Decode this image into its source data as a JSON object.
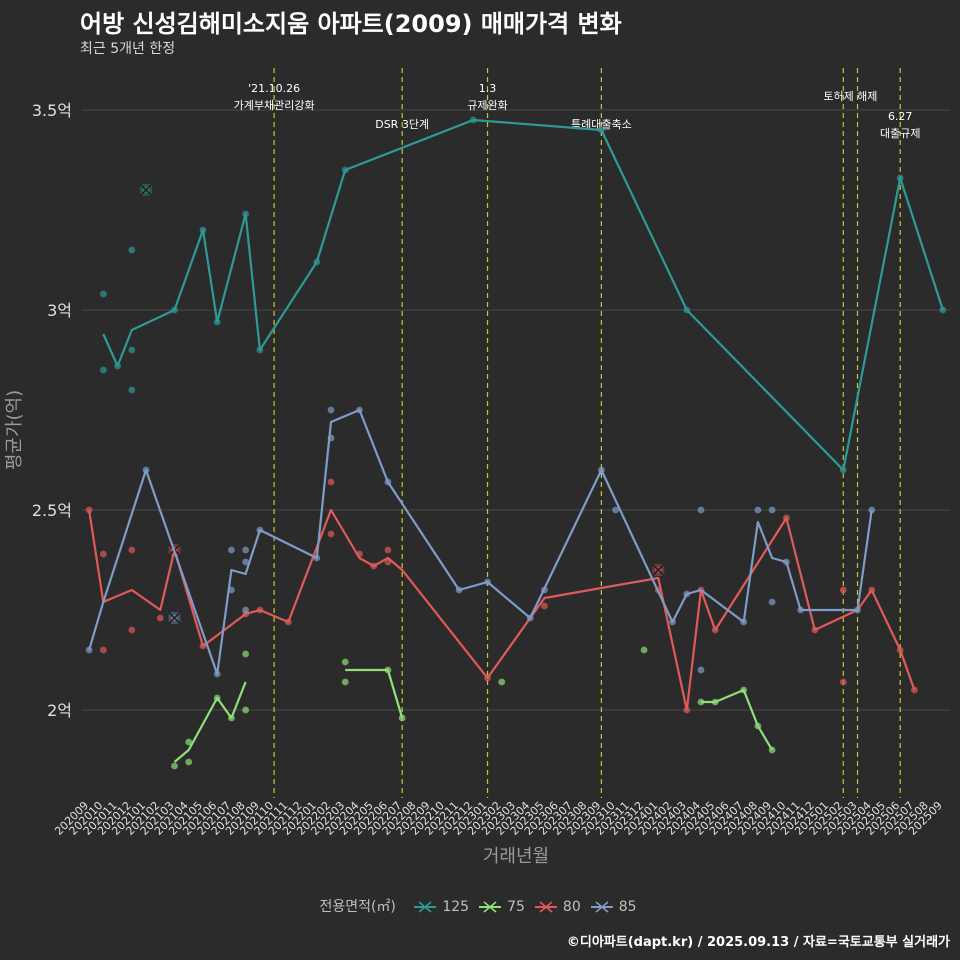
{
  "title": "어방 신성김해미소지움 아파트(2009) 매매가격 변화",
  "subtitle": "최근 5개년 한정",
  "caption": "©디아파트(dapt.kr) / 2025.09.13 / 자료=국토교통부 실거래가",
  "legend": {
    "title": "전용면적(㎡)"
  },
  "chart_data": {
    "type": "line",
    "xlabel": "거래년월",
    "ylabel": "평균가(억)",
    "categories": [
      "202009",
      "202010",
      "202011",
      "202012",
      "202101",
      "202102",
      "202103",
      "202104",
      "202105",
      "202106",
      "202107",
      "202108",
      "202109",
      "202110",
      "202111",
      "202112",
      "202201",
      "202202",
      "202203",
      "202204",
      "202205",
      "202206",
      "202207",
      "202208",
      "202209",
      "202210",
      "202211",
      "202212",
      "202301",
      "202302",
      "202303",
      "202304",
      "202305",
      "202306",
      "202307",
      "202308",
      "202309",
      "202310",
      "202311",
      "202312",
      "202401",
      "202402",
      "202403",
      "202404",
      "202405",
      "202406",
      "202407",
      "202408",
      "202409",
      "202410",
      "202411",
      "202412",
      "202501",
      "202502",
      "202503",
      "202504",
      "202505",
      "202506",
      "202507",
      "202508",
      "202509"
    ],
    "ylim": [
      1.78,
      3.62
    ],
    "yticks": [
      {
        "value": 2.0,
        "label": "2억"
      },
      {
        "value": 2.5,
        "label": "2.5억"
      },
      {
        "value": 3.0,
        "label": "3억"
      },
      {
        "value": 3.5,
        "label": "3.5억"
      }
    ],
    "grid": true,
    "legend_position": "bottom",
    "events": [
      {
        "month": "202110",
        "label": "'21.10.26 가계부채관리강화",
        "lines": [
          "'21.10.26",
          "가계부채관리강화"
        ]
      },
      {
        "month": "202207",
        "label": "DSR 3단계",
        "lines": [
          "DSR 3단계"
        ]
      },
      {
        "month": "202301",
        "label": "1.3 규제완화",
        "lines": [
          "1.3",
          "규제완화"
        ]
      },
      {
        "month": "202309",
        "label": "특례대출축소",
        "lines": [
          "특례대출축소"
        ]
      },
      {
        "month": "202502",
        "label": "토허제 해제",
        "lines": [
          "토허제 해제"
        ]
      },
      {
        "month": "202503",
        "label": "토허제 해제",
        "lines": []
      },
      {
        "month": "202506",
        "label": "6.27 대출규제",
        "lines": [
          "6.27",
          "대출규제"
        ]
      }
    ],
    "series": [
      {
        "name": "125",
        "color": "#2e9a96",
        "line": [
          [
            "202010",
            2.94
          ],
          [
            "202011",
            2.86
          ],
          [
            "202012",
            2.95
          ],
          [
            "202103",
            3.0
          ],
          [
            "202105",
            3.2
          ],
          [
            "202106",
            2.97
          ],
          [
            "202108",
            3.24
          ],
          [
            "202109",
            2.9
          ],
          [
            "202201",
            3.12
          ],
          [
            "202203",
            3.35
          ],
          [
            "202212",
            3.475
          ],
          [
            "202309",
            3.45
          ],
          [
            "202403",
            3.0
          ],
          [
            "202502",
            2.6
          ],
          [
            "202506",
            3.33
          ],
          [
            "202509",
            3.0
          ]
        ],
        "points": [
          [
            "202010",
            2.85
          ],
          [
            "202010",
            3.04
          ],
          [
            "202011",
            2.86
          ],
          [
            "202012",
            3.15
          ],
          [
            "202012",
            2.9
          ],
          [
            "202012",
            2.8
          ],
          [
            "202101",
            3.3
          ],
          [
            "202103",
            3.0
          ],
          [
            "202105",
            3.2
          ],
          [
            "202106",
            2.97
          ],
          [
            "202108",
            3.24
          ],
          [
            "202109",
            2.9
          ],
          [
            "202201",
            3.12
          ],
          [
            "202203",
            3.35
          ],
          [
            "202212",
            3.475
          ],
          [
            "202309",
            3.45
          ],
          [
            "202403",
            3.0
          ],
          [
            "202502",
            2.6
          ],
          [
            "202506",
            3.33
          ],
          [
            "202509",
            3.0
          ]
        ],
        "marks": [
          [
            "202101",
            3.3
          ]
        ]
      },
      {
        "name": "75",
        "color": "#8ee07a",
        "segments": [
          [
            [
              "202103",
              1.87
            ],
            [
              "202104",
              1.9
            ],
            [
              "202106",
              2.03
            ],
            [
              "202107",
              1.98
            ],
            [
              "202108",
              2.07
            ]
          ],
          [
            [
              "202203",
              2.1
            ],
            [
              "202206",
              2.1
            ],
            [
              "202207",
              1.98
            ]
          ],
          [
            [
              "202404",
              2.02
            ],
            [
              "202405",
              2.02
            ],
            [
              "202407",
              2.05
            ],
            [
              "202408",
              1.96
            ],
            [
              "202409",
              1.9
            ]
          ]
        ],
        "points": [
          [
            "202103",
            1.86
          ],
          [
            "202104",
            1.87
          ],
          [
            "202104",
            1.92
          ],
          [
            "202106",
            2.03
          ],
          [
            "202107",
            1.98
          ],
          [
            "202108",
            2.0
          ],
          [
            "202108",
            2.14
          ],
          [
            "202203",
            2.12
          ],
          [
            "202203",
            2.07
          ],
          [
            "202206",
            2.1
          ],
          [
            "202207",
            1.98
          ],
          [
            "202302",
            2.07
          ],
          [
            "202312",
            2.15
          ],
          [
            "202404",
            2.02
          ],
          [
            "202405",
            2.02
          ],
          [
            "202407",
            2.05
          ],
          [
            "202408",
            1.96
          ],
          [
            "202409",
            1.9
          ]
        ],
        "marks": []
      },
      {
        "name": "80",
        "color": "#e05a5a",
        "line": [
          [
            "202009",
            2.5
          ],
          [
            "202010",
            2.27
          ],
          [
            "202012",
            2.3
          ],
          [
            "202102",
            2.25
          ],
          [
            "202103",
            2.4
          ],
          [
            "202105",
            2.16
          ],
          [
            "202108",
            2.24
          ],
          [
            "202109",
            2.25
          ],
          [
            "202111",
            2.22
          ],
          [
            "202202",
            2.5
          ],
          [
            "202204",
            2.38
          ],
          [
            "202205",
            2.36
          ],
          [
            "202206",
            2.38
          ],
          [
            "202207",
            2.35
          ],
          [
            "202301",
            2.08
          ],
          [
            "202305",
            2.28
          ],
          [
            "202401",
            2.33
          ],
          [
            "202403",
            2.0
          ],
          [
            "202404",
            2.3
          ],
          [
            "202405",
            2.2
          ],
          [
            "202410",
            2.48
          ],
          [
            "202412",
            2.2
          ],
          [
            "202503",
            2.25
          ],
          [
            "202504",
            2.3
          ],
          [
            "202506",
            2.15
          ],
          [
            "202507",
            2.05
          ]
        ],
        "points": [
          [
            "202009",
            2.5
          ],
          [
            "202010",
            2.39
          ],
          [
            "202010",
            2.15
          ],
          [
            "202012",
            2.4
          ],
          [
            "202012",
            2.2
          ],
          [
            "202102",
            2.23
          ],
          [
            "202103",
            2.4
          ],
          [
            "202105",
            2.16
          ],
          [
            "202108",
            2.24
          ],
          [
            "202109",
            2.25
          ],
          [
            "202111",
            2.22
          ],
          [
            "202202",
            2.57
          ],
          [
            "202202",
            2.44
          ],
          [
            "202204",
            2.39
          ],
          [
            "202205",
            2.36
          ],
          [
            "202206",
            2.4
          ],
          [
            "202206",
            2.37
          ],
          [
            "202301",
            2.08
          ],
          [
            "202305",
            2.26
          ],
          [
            "202401",
            2.35
          ],
          [
            "202401",
            2.3
          ],
          [
            "202403",
            2.0
          ],
          [
            "202404",
            2.3
          ],
          [
            "202405",
            2.2
          ],
          [
            "202410",
            2.48
          ],
          [
            "202412",
            2.2
          ],
          [
            "202502",
            2.3
          ],
          [
            "202502",
            2.07
          ],
          [
            "202504",
            2.3
          ],
          [
            "202506",
            2.15
          ],
          [
            "202507",
            2.05
          ]
        ],
        "marks": [
          [
            "202103",
            2.4
          ],
          [
            "202401",
            2.35
          ]
        ]
      },
      {
        "name": "85",
        "color": "#7f9cc8",
        "line": [
          [
            "202009",
            2.15
          ],
          [
            "202010",
            2.27
          ],
          [
            "202101",
            2.6
          ],
          [
            "202106",
            2.09
          ],
          [
            "202107",
            2.35
          ],
          [
            "202108",
            2.34
          ],
          [
            "202109",
            2.45
          ],
          [
            "202201",
            2.38
          ],
          [
            "202202",
            2.72
          ],
          [
            "202204",
            2.75
          ],
          [
            "202206",
            2.57
          ],
          [
            "202211",
            2.3
          ],
          [
            "202301",
            2.32
          ],
          [
            "202304",
            2.23
          ],
          [
            "202309",
            2.6
          ],
          [
            "202402",
            2.22
          ],
          [
            "202403",
            2.29
          ],
          [
            "202404",
            2.3
          ],
          [
            "202407",
            2.22
          ],
          [
            "202408",
            2.47
          ],
          [
            "202409",
            2.38
          ],
          [
            "202410",
            2.37
          ],
          [
            "202411",
            2.25
          ],
          [
            "202503",
            2.25
          ],
          [
            "202504",
            2.5
          ]
        ],
        "points": [
          [
            "202009",
            2.15
          ],
          [
            "202101",
            2.6
          ],
          [
            "202103",
            2.23
          ],
          [
            "202106",
            2.09
          ],
          [
            "202107",
            2.4
          ],
          [
            "202107",
            2.3
          ],
          [
            "202108",
            2.4
          ],
          [
            "202108",
            2.37
          ],
          [
            "202108",
            2.25
          ],
          [
            "202109",
            2.45
          ],
          [
            "202201",
            2.38
          ],
          [
            "202202",
            2.75
          ],
          [
            "202202",
            2.68
          ],
          [
            "202204",
            2.75
          ],
          [
            "202206",
            2.57
          ],
          [
            "202211",
            2.3
          ],
          [
            "202301",
            2.32
          ],
          [
            "202304",
            2.23
          ],
          [
            "202305",
            2.3
          ],
          [
            "202309",
            2.6
          ],
          [
            "202310",
            2.5
          ],
          [
            "202402",
            2.22
          ],
          [
            "202403",
            2.29
          ],
          [
            "202404",
            2.5
          ],
          [
            "202404",
            2.1
          ],
          [
            "202407",
            2.22
          ],
          [
            "202408",
            2.5
          ],
          [
            "202409",
            2.5
          ],
          [
            "202409",
            2.27
          ],
          [
            "202410",
            2.37
          ],
          [
            "202411",
            2.25
          ],
          [
            "202503",
            2.25
          ],
          [
            "202504",
            2.5
          ]
        ],
        "marks": [
          [
            "202103",
            2.23
          ]
        ]
      }
    ]
  }
}
